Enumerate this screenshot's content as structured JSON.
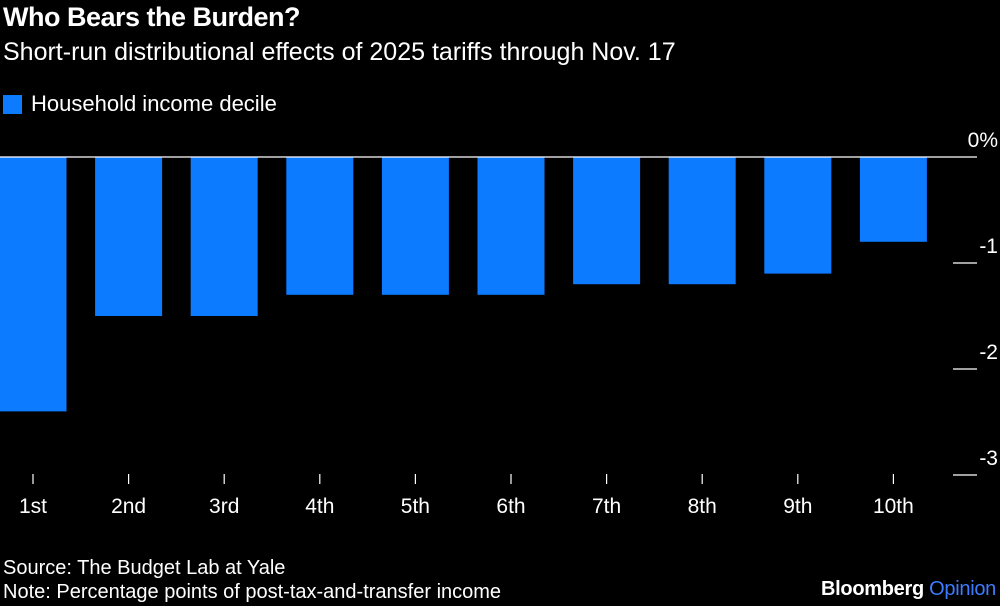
{
  "title": "Who Bears the Burden?",
  "subtitle": "Short-run distributional effects of 2025 tariffs through Nov. 17",
  "footer": {
    "source": "Source: The Budget Lab at Yale",
    "note": "Note: Percentage points of post-tax-and-transfer income"
  },
  "brand": {
    "name": "Bloomberg",
    "suffix": "Opinion",
    "name_color": "#ffffff",
    "suffix_color": "#3d7bff"
  },
  "colors": {
    "background": "#000000",
    "bar": "#0d7bff",
    "text": "#ffffff"
  },
  "chart_data": {
    "type": "bar",
    "title": "Who Bears the Burden?",
    "xlabel": "",
    "ylabel": "",
    "categories": [
      "1st",
      "2nd",
      "3rd",
      "4th",
      "5th",
      "6th",
      "7th",
      "8th",
      "9th",
      "10th"
    ],
    "series": [
      {
        "name": "Household income decile",
        "values": [
          -2.4,
          -1.5,
          -1.5,
          -1.3,
          -1.3,
          -1.3,
          -1.2,
          -1.2,
          -1.1,
          -0.8
        ]
      }
    ],
    "ylim": [
      -3,
      0
    ],
    "yticks": [
      0,
      -1,
      -2,
      -3
    ],
    "ytick_labels": [
      "0%",
      "-1",
      "-2",
      "-3"
    ],
    "legend_position": "top-left",
    "grid": false
  }
}
